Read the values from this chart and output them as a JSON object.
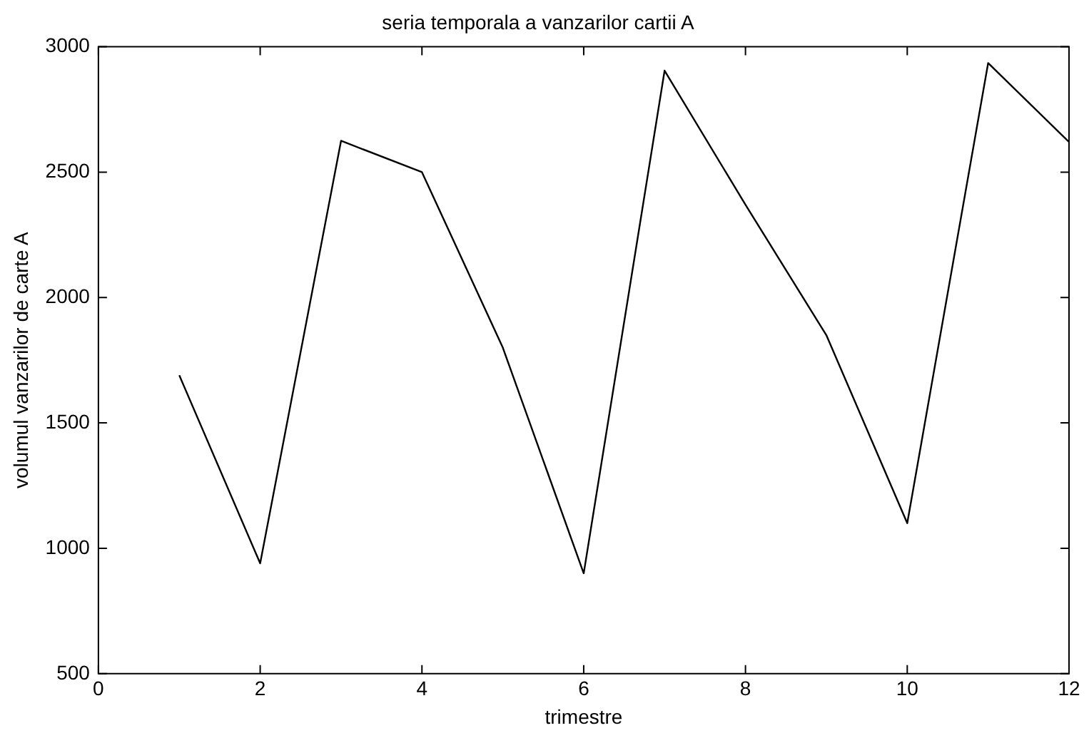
{
  "chart_data": {
    "type": "line",
    "title": "seria temporala a vanzarilor cartii A",
    "xlabel": "trimestre",
    "ylabel": "volumul vanzarilor de carte A",
    "x": [
      1,
      2,
      3,
      4,
      5,
      6,
      7,
      8,
      9,
      10,
      11,
      12
    ],
    "series": [
      {
        "color": "#000000",
        "values": [
          1690,
          940,
          2625,
          2500,
          1800,
          900,
          2905,
          2370,
          1850,
          1100,
          2935,
          2620
        ]
      }
    ],
    "xlim": [
      0,
      12
    ],
    "xticks": [
      0,
      2,
      4,
      6,
      8,
      10,
      12
    ],
    "ylim": [
      500,
      3000
    ],
    "yticks": [
      500,
      1000,
      1500,
      2000,
      2500,
      3000
    ],
    "grid": false,
    "legend": false,
    "marker": "none",
    "line_style": "solid"
  }
}
